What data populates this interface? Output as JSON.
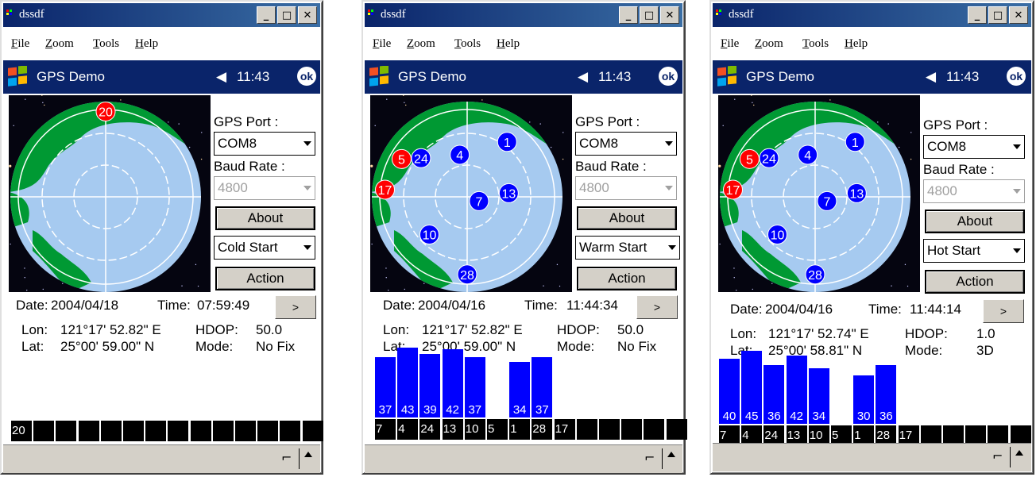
{
  "windows": [
    {
      "title": "dssdf",
      "menu": [
        "File",
        "Zoom",
        "Tools",
        "Help"
      ],
      "taskbar": {
        "title": "GPS Demo",
        "time": "11:43",
        "ok": "ok"
      },
      "panel": {
        "port_label": "GPS Port :",
        "port_value": "COM8",
        "baud_label": "Baud Rate :",
        "baud_value": "4800",
        "about": "About",
        "start_value": "Cold Start",
        "action": "Action"
      },
      "date_label": "Date:",
      "date": "2004/04/18",
      "time_label": "Time:",
      "time": "07:59:49",
      "next_button": ">",
      "lon_label": "Lon:",
      "lon": "121°17' 52.82\" E",
      "hdop_label": "HDOP:",
      "hdop": "50.0",
      "lat_label": "Lat:",
      "lat": "25°00' 59.00\" N",
      "mode_label": "Mode:",
      "mode": "No Fix",
      "satellites": [
        {
          "prn": "20",
          "color": "#ff0000",
          "azimuth": 0,
          "elevation": 2
        }
      ],
      "signal_bars": [],
      "prn_cells": [
        "20",
        "",
        "",
        "",
        "",
        "",
        "",
        "",
        "",
        "",
        "",
        "",
        "",
        ""
      ]
    },
    {
      "title": "dssdf",
      "menu": [
        "File",
        "Zoom",
        "Tools",
        "Help"
      ],
      "taskbar": {
        "title": "GPS Demo",
        "time": "11:43",
        "ok": "ok"
      },
      "panel": {
        "port_label": "GPS Port :",
        "port_value": "COM8",
        "baud_label": "Baud Rate :",
        "baud_value": "4800",
        "about": "About",
        "start_value": "Warm Start",
        "action": "Action"
      },
      "date_label": "Date:",
      "date": "2004/04/16",
      "time_label": "Time:",
      "time": "11:44:34",
      "next_button": ">",
      "lon_label": "Lon:",
      "lon": "121°17' 52.82\" E",
      "hdop_label": "HDOP:",
      "hdop": "50.0",
      "lat_label": "Lat:",
      "lat": "25°00' 59.00\" N",
      "mode_label": "Mode:",
      "mode": "No Fix",
      "satellites": [
        {
          "prn": "5",
          "color": "#ff0000",
          "azimuth": 300,
          "elevation": 12
        },
        {
          "prn": "24",
          "color": "#0000ff",
          "azimuth": 310,
          "elevation": 28
        },
        {
          "prn": "4",
          "color": "#0000ff",
          "azimuth": 350,
          "elevation": 46
        },
        {
          "prn": "1",
          "color": "#0000ff",
          "azimuth": 36,
          "elevation": 20
        },
        {
          "prn": "17",
          "color": "#ff0000",
          "azimuth": 275,
          "elevation": 5
        },
        {
          "prn": "7",
          "color": "#0000ff",
          "azimuth": 110,
          "elevation": 77
        },
        {
          "prn": "13",
          "color": "#0000ff",
          "azimuth": 85,
          "elevation": 47
        },
        {
          "prn": "10",
          "color": "#0000ff",
          "azimuth": 225,
          "elevation": 35
        },
        {
          "prn": "28",
          "color": "#0000ff",
          "azimuth": 180,
          "elevation": 10
        }
      ],
      "signal_bars": [
        {
          "value": "37",
          "snr": 37,
          "slot": 0
        },
        {
          "value": "43",
          "snr": 43,
          "slot": 1
        },
        {
          "value": "39",
          "snr": 39,
          "slot": 2
        },
        {
          "value": "42",
          "snr": 42,
          "slot": 3
        },
        {
          "value": "37",
          "snr": 37,
          "slot": 4
        },
        {
          "value": "34",
          "snr": 34,
          "slot": 6
        },
        {
          "value": "37",
          "snr": 37,
          "slot": 7
        }
      ],
      "prn_cells": [
        "7",
        "4",
        "24",
        "13",
        "10",
        "5",
        "1",
        "28",
        "17",
        "",
        "",
        "",
        "",
        ""
      ]
    },
    {
      "title": "dssdf",
      "menu": [
        "File",
        "Zoom",
        "Tools",
        "Help"
      ],
      "taskbar": {
        "title": "GPS Demo",
        "time": "11:43",
        "ok": "ok"
      },
      "panel": {
        "port_label": "GPS Port :",
        "port_value": "COM8",
        "baud_label": "Baud Rate :",
        "baud_value": "4800",
        "about": "About",
        "start_value": "Hot Start",
        "action": "Action"
      },
      "date_label": "Date:",
      "date": "2004/04/16",
      "time_label": "Time:",
      "time": "11:44:14",
      "next_button": ">",
      "lon_label": "Lon:",
      "lon": "121°17' 52.74\" E",
      "hdop_label": "HDOP:",
      "hdop": "1.0",
      "lat_label": "Lat:",
      "lat": "25°00' 58.81\" N",
      "mode_label": "Mode:",
      "mode": "3D",
      "satellites": [
        {
          "prn": "5",
          "color": "#ff0000",
          "azimuth": 300,
          "elevation": 12
        },
        {
          "prn": "24",
          "color": "#0000ff",
          "azimuth": 310,
          "elevation": 28
        },
        {
          "prn": "4",
          "color": "#0000ff",
          "azimuth": 350,
          "elevation": 46
        },
        {
          "prn": "1",
          "color": "#0000ff",
          "azimuth": 36,
          "elevation": 20
        },
        {
          "prn": "17",
          "color": "#ff0000",
          "azimuth": 275,
          "elevation": 5
        },
        {
          "prn": "7",
          "color": "#0000ff",
          "azimuth": 110,
          "elevation": 77
        },
        {
          "prn": "13",
          "color": "#0000ff",
          "azimuth": 85,
          "elevation": 47
        },
        {
          "prn": "10",
          "color": "#0000ff",
          "azimuth": 225,
          "elevation": 35
        },
        {
          "prn": "28",
          "color": "#0000ff",
          "azimuth": 180,
          "elevation": 10
        }
      ],
      "signal_bars": [
        {
          "value": "40",
          "snr": 40,
          "slot": 0
        },
        {
          "value": "45",
          "snr": 45,
          "slot": 1
        },
        {
          "value": "36",
          "snr": 36,
          "slot": 2
        },
        {
          "value": "42",
          "snr": 42,
          "slot": 3
        },
        {
          "value": "34",
          "snr": 34,
          "slot": 4
        },
        {
          "value": "30",
          "snr": 30,
          "slot": 6
        },
        {
          "value": "36",
          "snr": 36,
          "slot": 7
        }
      ],
      "prn_cells": [
        "7",
        "4",
        "24",
        "13",
        "10",
        "5",
        "1",
        "28",
        "17",
        "",
        "",
        "",
        "",
        ""
      ]
    }
  ],
  "colors": {
    "title_gradient_start": "#0a246a",
    "title_gradient_end": "#3a6ea5",
    "taskbar": "#0a246a",
    "ocean": "#a6caf0",
    "land": "#009933",
    "sat_tracked": "#0000ff",
    "sat_untracked": "#ff0000",
    "signal_bar": "#0000ff"
  },
  "icons": [
    "windows-flag-icon",
    "speaker-icon",
    "ok-icon",
    "minimize-icon",
    "maximize-icon",
    "close-icon",
    "keyboard-icon",
    "up-arrow-icon"
  ]
}
